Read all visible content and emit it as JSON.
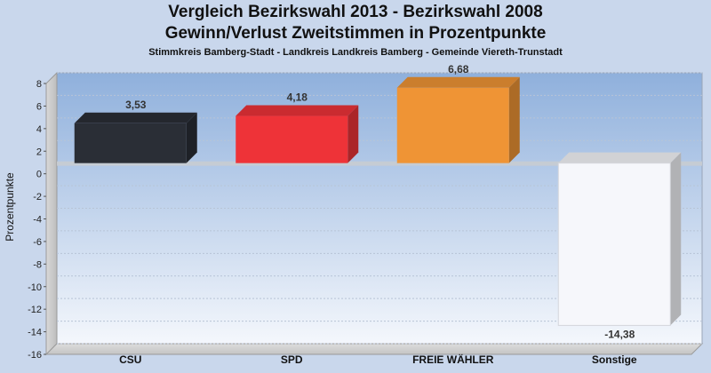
{
  "header": {
    "title_line1": "Vergleich Bezirkswahl 2013 - Bezirkswahl 2008",
    "title_line2": "Gewinn/Verlust Zweitstimmen in Prozentpunkte",
    "subtitle": "Stimmkreis Bamberg-Stadt - Landkreis Landkreis Bamberg - Gemeinde Viereth-Trunstadt"
  },
  "chart_data": {
    "type": "bar",
    "title": "Vergleich Bezirkswahl 2013 - Bezirkswahl 2008",
    "subtitle": "Gewinn/Verlust Zweitstimmen in Prozentpunkte",
    "ylabel": "Prozentpunkte",
    "xlabel": "",
    "categories": [
      "CSU",
      "SPD",
      "FREIE WÄHLER",
      "Sonstige"
    ],
    "values": [
      3.53,
      4.18,
      6.68,
      -14.38
    ],
    "value_labels": [
      "3,53",
      "4,18",
      "6,68",
      "-14,38"
    ],
    "colors": [
      "#2a2e36",
      "#ee3338",
      "#ef9435",
      "#f6f7fb"
    ],
    "ylim": [
      -16,
      8
    ],
    "yticks": [
      8,
      6,
      4,
      2,
      0,
      -2,
      -4,
      -6,
      -8,
      -10,
      -12,
      -14,
      -16
    ],
    "grid": true,
    "style": "3d"
  }
}
